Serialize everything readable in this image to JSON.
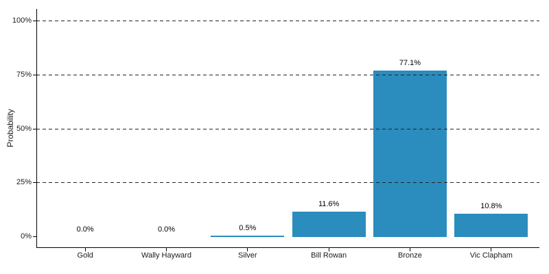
{
  "chart_data": {
    "type": "bar",
    "title": "",
    "xlabel": "",
    "ylabel": "Probability",
    "categories": [
      "Gold",
      "Wally Hayward",
      "Silver",
      "Bill Rowan",
      "Bronze",
      "Vic Clapham"
    ],
    "values": [
      0.0,
      0.0,
      0.5,
      11.6,
      77.1,
      10.8
    ],
    "bar_labels": [
      "0.0%",
      "0.0%",
      "0.5%",
      "11.6%",
      "77.1%",
      "10.8%"
    ],
    "y_ticks": [
      {
        "value": 0,
        "label": "0%"
      },
      {
        "value": 25,
        "label": "25%"
      },
      {
        "value": 50,
        "label": "50%"
      },
      {
        "value": 75,
        "label": "75%"
      },
      {
        "value": 100,
        "label": "100%"
      }
    ],
    "gridline_values": [
      25,
      50,
      75,
      100
    ],
    "ylim": [
      0,
      100
    ],
    "grid": "horizontal-dashed, drawn over bars",
    "legend_position": "none",
    "colors": {
      "bar_fill": "#2b8cbe",
      "gridline": "#222222",
      "axis_line": "#000000",
      "text": "#1a1a1a",
      "background": "#ffffff"
    }
  }
}
